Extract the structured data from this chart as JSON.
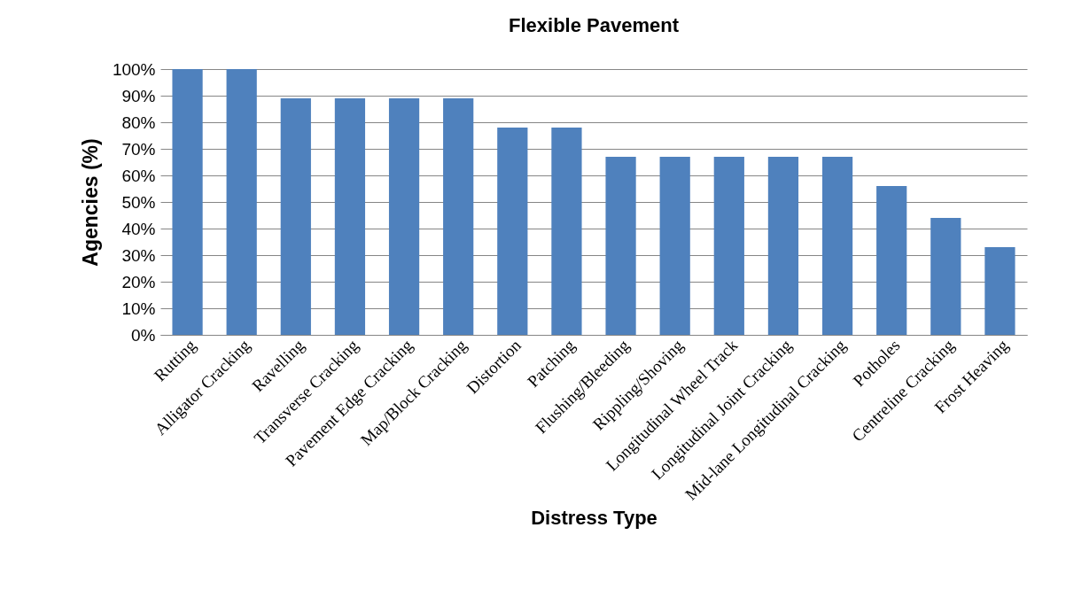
{
  "chart_data": {
    "type": "bar",
    "title": "Flexible Pavement",
    "xlabel": "Distress Type",
    "ylabel": "Agencies (%)",
    "categories": [
      "Rutting",
      "Alligator Cracking",
      "Ravelling",
      "Transverse Cracking",
      "Pavement Edge Cracking",
      "Map/Block Cracking",
      "Distortion",
      "Patching",
      "Flushing/Bleeding",
      "Rippling/Shoving",
      "Longitudinal Wheel Track",
      "Longitudinal Joint Cracking",
      "Mid-lane Longitudinal Cracking",
      "Potholes",
      "Centreline Cracking",
      "Frost Heaving"
    ],
    "values": [
      100,
      100,
      89,
      89,
      89,
      89,
      78,
      78,
      67,
      67,
      67,
      67,
      67,
      56,
      44,
      33
    ],
    "color": "#4f81bd",
    "ylim": [
      0,
      100
    ],
    "yticks": [
      {
        "value": 0,
        "label": "0%"
      },
      {
        "value": 10,
        "label": "10%"
      },
      {
        "value": 20,
        "label": "20%"
      },
      {
        "value": 30,
        "label": "30%"
      },
      {
        "value": 40,
        "label": "40%"
      },
      {
        "value": 50,
        "label": "50%"
      },
      {
        "value": 60,
        "label": "60%"
      },
      {
        "value": 70,
        "label": "70%"
      },
      {
        "value": 80,
        "label": "80%"
      },
      {
        "value": 90,
        "label": "90%"
      },
      {
        "value": 100,
        "label": "100%"
      }
    ],
    "grid": "y"
  }
}
